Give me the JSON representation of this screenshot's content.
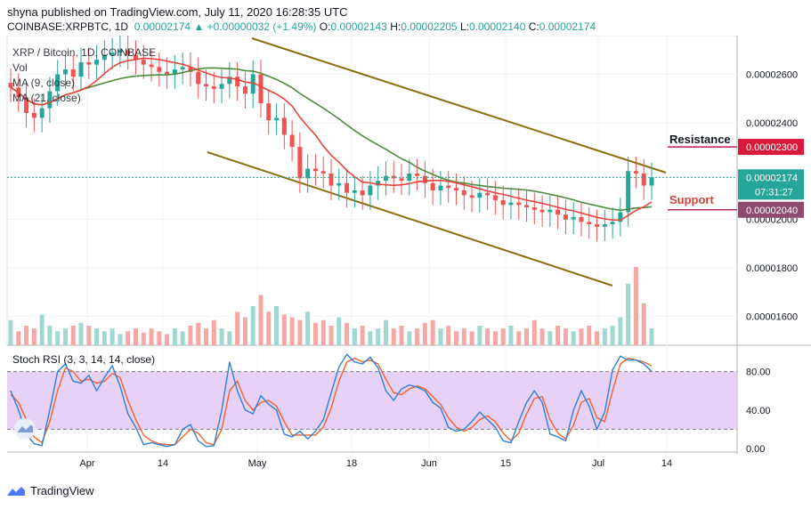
{
  "header": {
    "published": "shyna published on TradingView.com, July 11, 2020 16:28:35 UTC",
    "symbol": "COINBASE:XRPBTC, 1D",
    "last": "0.00002174",
    "change": "▲ +0.00000032 (+1.49%)",
    "o_label": "O:",
    "o": "0.00002143",
    "h_label": "H:",
    "h": "0.00002205",
    "l_label": "L:",
    "l": "0.00002140",
    "c_label": "C:",
    "c": "0.00002174"
  },
  "legend": {
    "pair": "XRP / Bitcoin, 1D, COINBASE",
    "vol": "Vol",
    "ma9": "MA (9, close)",
    "ma21": "MA (21, close)"
  },
  "footer": {
    "brand": "TradingView"
  },
  "colors": {
    "up": "#26a69a",
    "down": "#ef5350",
    "up_vol": "#9fd8d2",
    "down_vol": "#f5a8a5",
    "ma9": "#e8453c",
    "ma21": "#4c8c3c",
    "channel": "#8c6e10",
    "resistance": "#c2185b",
    "support": "#b03060",
    "stoch_k": "#2f7fd6",
    "stoch_d": "#f0622a",
    "band": "#e1c6f5"
  },
  "chart_data": [
    {
      "type": "candlestick",
      "title": "XRP / Bitcoin, 1D, COINBASE",
      "x_ticks": [
        "Apr",
        "14",
        "May",
        "18",
        "Jun",
        "15",
        "Jul",
        "14"
      ],
      "y_ticks": [
        "0.00002600",
        "0.00002400",
        "0.00002000",
        "0.00001800",
        "0.00001600"
      ],
      "ylim": [
        1.48e-05,
        2.76e-05
      ],
      "annotations": {
        "resistance_label": "Resistance",
        "resistance_value": "0.00002300",
        "support_label": "Support",
        "support_value": "0.00002040",
        "last_price": "0.00002174",
        "countdown": "07:31:27"
      },
      "candles_close": [
        2.545e-05,
        2.505e-05,
        2.44e-05,
        2.42e-05,
        2.46e-05,
        2.53e-05,
        2.6e-05,
        2.62e-05,
        2.59e-05,
        2.65e-05,
        2.64e-05,
        2.66e-05,
        2.68e-05,
        2.69e-05,
        2.7e-05,
        2.68e-05,
        2.66e-05,
        2.64e-05,
        2.63e-05,
        2.61e-05,
        2.6e-05,
        2.62e-05,
        2.63e-05,
        2.61e-05,
        2.56e-05,
        2.55e-05,
        2.54e-05,
        2.56e-05,
        2.59e-05,
        2.55e-05,
        2.52e-05,
        2.6e-05,
        2.48e-05,
        2.41e-05,
        2.42e-05,
        2.35e-05,
        2.3e-05,
        2.17e-05,
        2.21e-05,
        2.2e-05,
        2.19e-05,
        2.14e-05,
        2.15e-05,
        2.11e-05,
        2.12e-05,
        2.1e-05,
        2.14e-05,
        2.16e-05,
        2.18e-05,
        2.17e-05,
        2.16e-05,
        2.19e-05,
        2.18e-05,
        2.15e-05,
        2.12e-05,
        2.14e-05,
        2.13e-05,
        2.12e-05,
        2.1e-05,
        2.09e-05,
        2.11e-05,
        2.1e-05,
        2.08e-05,
        2.06e-05,
        2.07e-05,
        2.06e-05,
        2.05e-05,
        2.04e-05,
        2.03e-05,
        2.04e-05,
        2.02e-05,
        2e-05,
        2.01e-05,
        1.99e-05,
        1.98e-05,
        1.97e-05,
        1.98e-05,
        1.99e-05,
        2.03e-05,
        2.2e-05,
        2.19e-05,
        2.14e-05,
        2.174e-05
      ],
      "volumes": [
        18,
        10,
        14,
        12,
        22,
        14,
        10,
        12,
        14,
        16,
        14,
        12,
        10,
        12,
        8,
        10,
        12,
        9,
        12,
        10,
        8,
        12,
        10,
        14,
        16,
        12,
        18,
        12,
        10,
        24,
        20,
        28,
        36,
        24,
        28,
        22,
        20,
        18,
        24,
        16,
        18,
        14,
        20,
        16,
        12,
        14,
        10,
        12,
        18,
        12,
        14,
        10,
        12,
        16,
        18,
        12,
        14,
        10,
        12,
        10,
        14,
        12,
        10,
        12,
        14,
        10,
        12,
        18,
        12,
        10,
        14,
        12,
        10,
        12,
        14,
        10,
        12,
        14,
        20,
        44,
        56,
        30,
        12
      ],
      "ma9_label": "MA (9, close)",
      "ma21_label": "MA (21, close)"
    },
    {
      "type": "line",
      "title": "Stoch RSI (3, 3, 14, 14, close)",
      "y_ticks": [
        "80.00",
        "40.00",
        "0.00"
      ],
      "ylim": [
        0,
        100
      ],
      "bands": [
        20,
        80
      ],
      "series": [
        {
          "name": "K",
          "values": [
            60,
            40,
            15,
            5,
            3,
            40,
            80,
            88,
            70,
            68,
            76,
            60,
            74,
            86,
            65,
            36,
            22,
            4,
            6,
            4,
            2,
            4,
            20,
            25,
            8,
            2,
            3,
            40,
            90,
            60,
            40,
            36,
            55,
            46,
            40,
            15,
            12,
            18,
            10,
            18,
            30,
            58,
            85,
            98,
            90,
            88,
            95,
            84,
            60,
            50,
            62,
            66,
            64,
            60,
            48,
            42,
            22,
            18,
            20,
            28,
            38,
            30,
            22,
            8,
            6,
            28,
            48,
            60,
            48,
            15,
            12,
            8,
            40,
            60,
            44,
            20,
            38,
            82,
            96,
            92,
            92,
            88,
            80
          ]
        },
        {
          "name": "D",
          "values": [
            56,
            48,
            30,
            12,
            6,
            28,
            60,
            84,
            80,
            70,
            72,
            68,
            70,
            78,
            74,
            50,
            30,
            14,
            8,
            5,
            4,
            4,
            12,
            20,
            16,
            6,
            4,
            20,
            60,
            70,
            50,
            40,
            48,
            50,
            44,
            28,
            14,
            14,
            14,
            14,
            22,
            42,
            70,
            90,
            94,
            90,
            92,
            88,
            72,
            58,
            56,
            62,
            65,
            62,
            54,
            46,
            32,
            22,
            18,
            22,
            30,
            34,
            28,
            16,
            8,
            16,
            36,
            52,
            54,
            30,
            16,
            10,
            24,
            48,
            52,
            32,
            28,
            60,
            88,
            94,
            92,
            90,
            86
          ]
        }
      ]
    }
  ]
}
